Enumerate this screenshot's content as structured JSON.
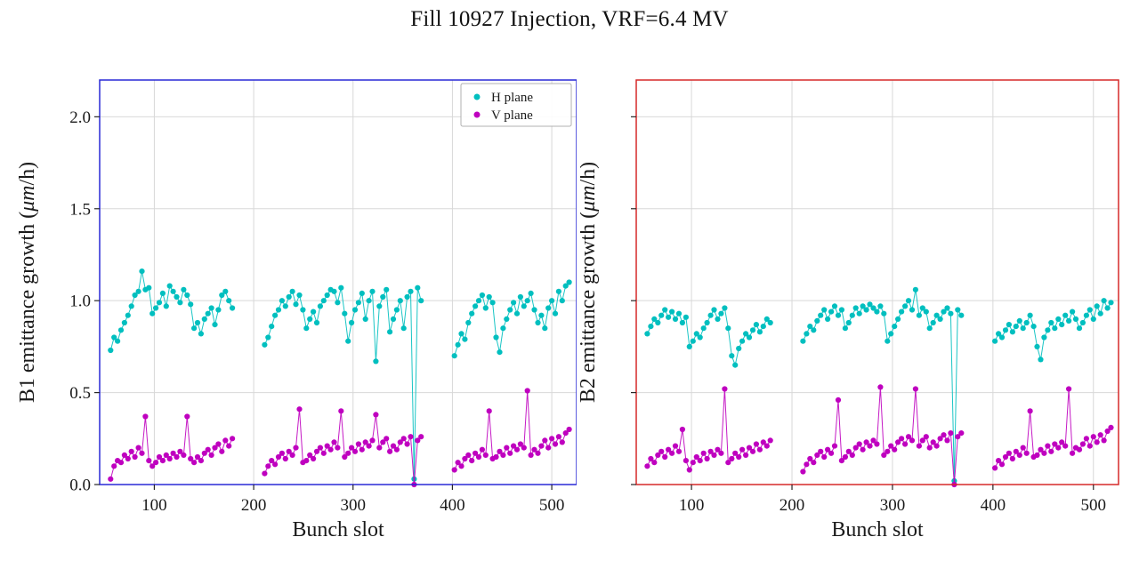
{
  "title": "Fill 10927 Injection, VRF=6.4 MV",
  "legend": {
    "h_label": "H plane",
    "v_label": "V plane"
  },
  "colors": {
    "h_plane": "#00bfbf",
    "v_plane": "#bf00bf",
    "b1_spine": "#2929d6",
    "b2_spine": "#d62929",
    "grid": "#d8d8d8",
    "tick": "#262626"
  },
  "chart_data": [
    {
      "type": "scatter",
      "title": "",
      "xlabel": "Bunch slot",
      "ylabel": {
        "pre": "B1 emittance growth (",
        "em": "μm",
        "post": "/h)"
      },
      "xlim": [
        45,
        525
      ],
      "ylim": [
        0,
        2.2
      ],
      "xticks": [
        100,
        200,
        300,
        400,
        500
      ],
      "yticks": [
        0.0,
        0.5,
        1.0,
        1.5,
        2.0
      ],
      "grid": true,
      "legend_position": "upper right inside",
      "spine_color": "#2929d6",
      "series": [
        {
          "name": "H plane",
          "color": "#00bfbf",
          "segments": [
            {
              "x_start": 56,
              "x_step": 3.5,
              "y": [
                0.73,
                0.8,
                0.78,
                0.84,
                0.88,
                0.92,
                0.97,
                1.03,
                1.05,
                1.16,
                1.06,
                1.07,
                0.93,
                0.96,
                0.99,
                1.04,
                0.97,
                1.08,
                1.05,
                1.02,
                0.99,
                1.06,
                1.03,
                0.98,
                0.85,
                0.88,
                0.82,
                0.9,
                0.93,
                0.96,
                0.87,
                0.95,
                1.03,
                1.05,
                1.0,
                0.96
              ]
            },
            {
              "x_start": 211,
              "x_step": 3.5,
              "y": [
                0.76,
                0.8,
                0.86,
                0.92,
                0.95,
                1.0,
                0.97,
                1.02,
                1.05,
                0.98,
                1.03,
                0.95,
                0.85,
                0.9,
                0.94,
                0.88,
                0.97,
                1.0,
                1.03,
                1.06,
                1.05,
                0.99,
                1.07,
                0.93,
                0.78,
                0.88,
                0.95,
                0.99,
                1.04,
                0.9,
                1.0,
                1.05,
                0.67,
                0.97,
                1.02,
                1.06,
                0.83,
                0.9,
                0.95,
                1.0,
                0.85,
                1.02,
                1.05,
                0.03,
                1.07,
                1.0
              ]
            },
            {
              "x_start": 402,
              "x_step": 3.5,
              "y": [
                0.7,
                0.76,
                0.82,
                0.79,
                0.88,
                0.93,
                0.97,
                1.0,
                1.03,
                0.96,
                1.02,
                0.99,
                0.8,
                0.72,
                0.85,
                0.9,
                0.95,
                0.99,
                0.93,
                1.02,
                0.97,
                1.0,
                1.04,
                0.95,
                0.88,
                0.92,
                0.85,
                0.96,
                1.0,
                0.93,
                1.05,
                1.0,
                1.08,
                1.1
              ]
            }
          ]
        },
        {
          "name": "V plane",
          "color": "#bf00bf",
          "segments": [
            {
              "x_start": 56,
              "x_step": 3.5,
              "y": [
                0.03,
                0.1,
                0.13,
                0.12,
                0.16,
                0.14,
                0.18,
                0.15,
                0.2,
                0.17,
                0.37,
                0.13,
                0.1,
                0.12,
                0.15,
                0.13,
                0.16,
                0.14,
                0.17,
                0.15,
                0.18,
                0.16,
                0.37,
                0.14,
                0.12,
                0.15,
                0.13,
                0.17,
                0.19,
                0.16,
                0.2,
                0.22,
                0.18,
                0.24,
                0.21,
                0.25
              ]
            },
            {
              "x_start": 211,
              "x_step": 3.5,
              "y": [
                0.06,
                0.1,
                0.13,
                0.11,
                0.15,
                0.17,
                0.14,
                0.18,
                0.16,
                0.2,
                0.41,
                0.12,
                0.13,
                0.16,
                0.14,
                0.18,
                0.2,
                0.17,
                0.21,
                0.19,
                0.23,
                0.2,
                0.4,
                0.15,
                0.17,
                0.2,
                0.18,
                0.22,
                0.19,
                0.23,
                0.21,
                0.24,
                0.38,
                0.2,
                0.23,
                0.25,
                0.18,
                0.21,
                0.19,
                0.23,
                0.25,
                0.22,
                0.26,
                0.0,
                0.24,
                0.26
              ]
            },
            {
              "x_start": 402,
              "x_step": 3.5,
              "y": [
                0.08,
                0.12,
                0.1,
                0.14,
                0.16,
                0.13,
                0.17,
                0.15,
                0.19,
                0.16,
                0.4,
                0.14,
                0.15,
                0.18,
                0.16,
                0.2,
                0.17,
                0.21,
                0.19,
                0.22,
                0.2,
                0.51,
                0.16,
                0.19,
                0.17,
                0.21,
                0.24,
                0.2,
                0.25,
                0.22,
                0.26,
                0.23,
                0.28,
                0.3
              ]
            }
          ]
        }
      ]
    },
    {
      "type": "scatter",
      "title": "",
      "xlabel": "Bunch slot",
      "ylabel": {
        "pre": "B2 emittance growth (",
        "em": "μm",
        "post": "/h)"
      },
      "xlim": [
        45,
        525
      ],
      "ylim": [
        0,
        2.2
      ],
      "xticks": [
        100,
        200,
        300,
        400,
        500
      ],
      "yticks": [
        0.0,
        0.5,
        1.0,
        1.5,
        2.0
      ],
      "grid": true,
      "legend_position": "none",
      "spine_color": "#d62929",
      "series": [
        {
          "name": "H plane",
          "color": "#00bfbf",
          "segments": [
            {
              "x_start": 56,
              "x_step": 3.5,
              "y": [
                0.82,
                0.86,
                0.9,
                0.88,
                0.92,
                0.95,
                0.91,
                0.94,
                0.9,
                0.93,
                0.88,
                0.91,
                0.75,
                0.78,
                0.82,
                0.8,
                0.85,
                0.88,
                0.92,
                0.95,
                0.9,
                0.93,
                0.96,
                0.85,
                0.7,
                0.65,
                0.74,
                0.78,
                0.82,
                0.8,
                0.84,
                0.87,
                0.83,
                0.86,
                0.9,
                0.88
              ]
            },
            {
              "x_start": 211,
              "x_step": 3.5,
              "y": [
                0.78,
                0.82,
                0.86,
                0.84,
                0.89,
                0.92,
                0.95,
                0.9,
                0.94,
                0.97,
                0.92,
                0.95,
                0.85,
                0.88,
                0.92,
                0.96,
                0.93,
                0.97,
                0.95,
                0.98,
                0.96,
                0.94,
                0.97,
                0.93,
                0.78,
                0.82,
                0.86,
                0.9,
                0.94,
                0.97,
                1.0,
                0.95,
                1.06,
                0.92,
                0.96,
                0.94,
                0.85,
                0.88,
                0.92,
                0.9,
                0.94,
                0.96,
                0.93,
                0.02,
                0.95,
                0.92
              ]
            },
            {
              "x_start": 402,
              "x_step": 3.5,
              "y": [
                0.78,
                0.82,
                0.8,
                0.84,
                0.87,
                0.83,
                0.86,
                0.89,
                0.85,
                0.88,
                0.92,
                0.86,
                0.75,
                0.68,
                0.8,
                0.84,
                0.88,
                0.85,
                0.9,
                0.87,
                0.92,
                0.89,
                0.94,
                0.9,
                0.85,
                0.88,
                0.92,
                0.95,
                0.9,
                0.97,
                0.93,
                1.0,
                0.96,
                0.99
              ]
            }
          ]
        },
        {
          "name": "V plane",
          "color": "#bf00bf",
          "segments": [
            {
              "x_start": 56,
              "x_step": 3.5,
              "y": [
                0.1,
                0.14,
                0.12,
                0.16,
                0.18,
                0.15,
                0.19,
                0.17,
                0.21,
                0.18,
                0.3,
                0.13,
                0.08,
                0.12,
                0.15,
                0.13,
                0.17,
                0.14,
                0.18,
                0.16,
                0.19,
                0.17,
                0.52,
                0.12,
                0.14,
                0.17,
                0.15,
                0.19,
                0.16,
                0.2,
                0.18,
                0.22,
                0.19,
                0.23,
                0.21,
                0.24
              ]
            },
            {
              "x_start": 211,
              "x_step": 3.5,
              "y": [
                0.07,
                0.11,
                0.14,
                0.12,
                0.16,
                0.18,
                0.15,
                0.19,
                0.17,
                0.21,
                0.46,
                0.13,
                0.15,
                0.18,
                0.16,
                0.2,
                0.22,
                0.19,
                0.23,
                0.21,
                0.24,
                0.22,
                0.53,
                0.16,
                0.18,
                0.21,
                0.19,
                0.23,
                0.25,
                0.22,
                0.26,
                0.24,
                0.52,
                0.21,
                0.24,
                0.26,
                0.2,
                0.23,
                0.21,
                0.25,
                0.27,
                0.24,
                0.28,
                0.0,
                0.26,
                0.28
              ]
            },
            {
              "x_start": 402,
              "x_step": 3.5,
              "y": [
                0.09,
                0.13,
                0.11,
                0.15,
                0.17,
                0.14,
                0.18,
                0.16,
                0.2,
                0.17,
                0.4,
                0.15,
                0.16,
                0.19,
                0.17,
                0.21,
                0.18,
                0.22,
                0.2,
                0.23,
                0.21,
                0.52,
                0.17,
                0.2,
                0.19,
                0.22,
                0.25,
                0.21,
                0.26,
                0.23,
                0.27,
                0.24,
                0.29,
                0.31
              ]
            }
          ]
        }
      ]
    }
  ]
}
